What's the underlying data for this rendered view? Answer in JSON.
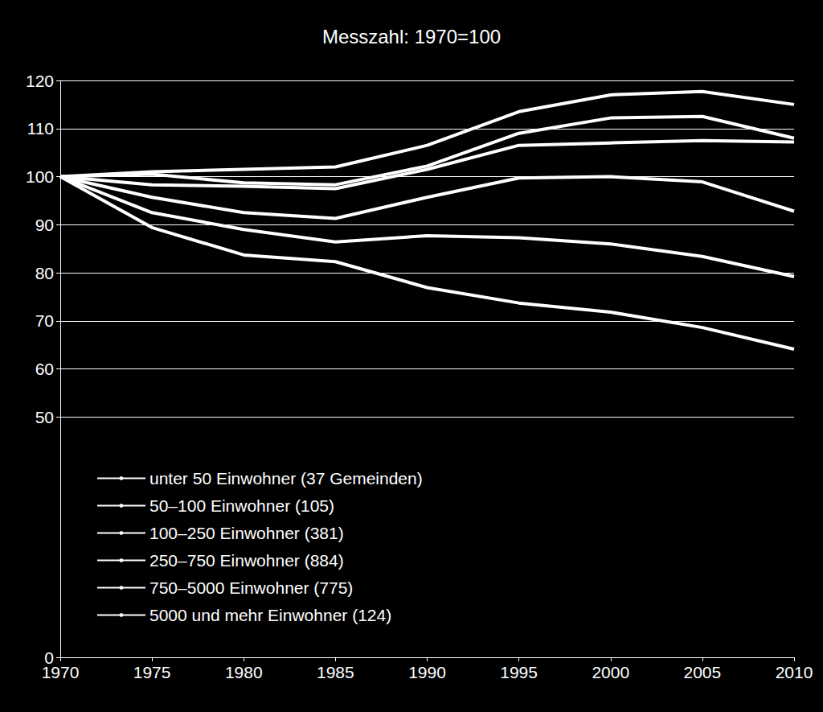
{
  "chart_data": {
    "type": "line",
    "title": "Messzahl: 1970=100",
    "x": [
      1970,
      1975,
      1980,
      1985,
      1990,
      1995,
      2000,
      2005,
      2010
    ],
    "xlim": [
      1970,
      2010
    ],
    "xticks": [
      1970,
      1975,
      1980,
      1985,
      1990,
      1995,
      2000,
      2005,
      2010
    ],
    "ylim": [
      0,
      120
    ],
    "yticks": [
      0,
      50,
      60,
      70,
      80,
      90,
      100,
      110,
      120
    ],
    "grid": true,
    "legend": "lower left",
    "series": [
      {
        "name": "unter 50 Einwohner (37 Gemeinden)",
        "color": "#ffffff",
        "values": [
          100,
          89.4,
          83.7,
          82.3,
          76.9,
          73.7,
          71.8,
          68.6,
          64.1
        ]
      },
      {
        "name": "50–100 Einwohner (105)",
        "color": "#ffffff",
        "values": [
          100,
          92.5,
          89.0,
          86.4,
          87.7,
          87.3,
          86.0,
          83.4,
          79.2
        ]
      },
      {
        "name": "100–250 Einwohner (381)",
        "color": "#ffffff",
        "values": [
          100,
          95.7,
          92.5,
          91.3,
          95.7,
          99.7,
          100.0,
          98.9,
          92.8
        ]
      },
      {
        "name": "250–750 Einwohner (884)",
        "color": "#ffffff",
        "values": [
          100,
          98.3,
          98.0,
          97.5,
          101.5,
          106.5,
          107.0,
          107.5,
          107.2
        ]
      },
      {
        "name": "750–5000 Einwohner (775)",
        "color": "#ffffff",
        "values": [
          100,
          100.5,
          98.7,
          98.3,
          102.2,
          109.0,
          112.2,
          112.5,
          108.0
        ]
      },
      {
        "name": "5000 und mehr Einwohner (124)",
        "color": "#ffffff",
        "values": [
          100,
          101.0,
          101.5,
          102.0,
          106.5,
          113.5,
          117.0,
          117.7,
          115.0
        ]
      }
    ]
  }
}
